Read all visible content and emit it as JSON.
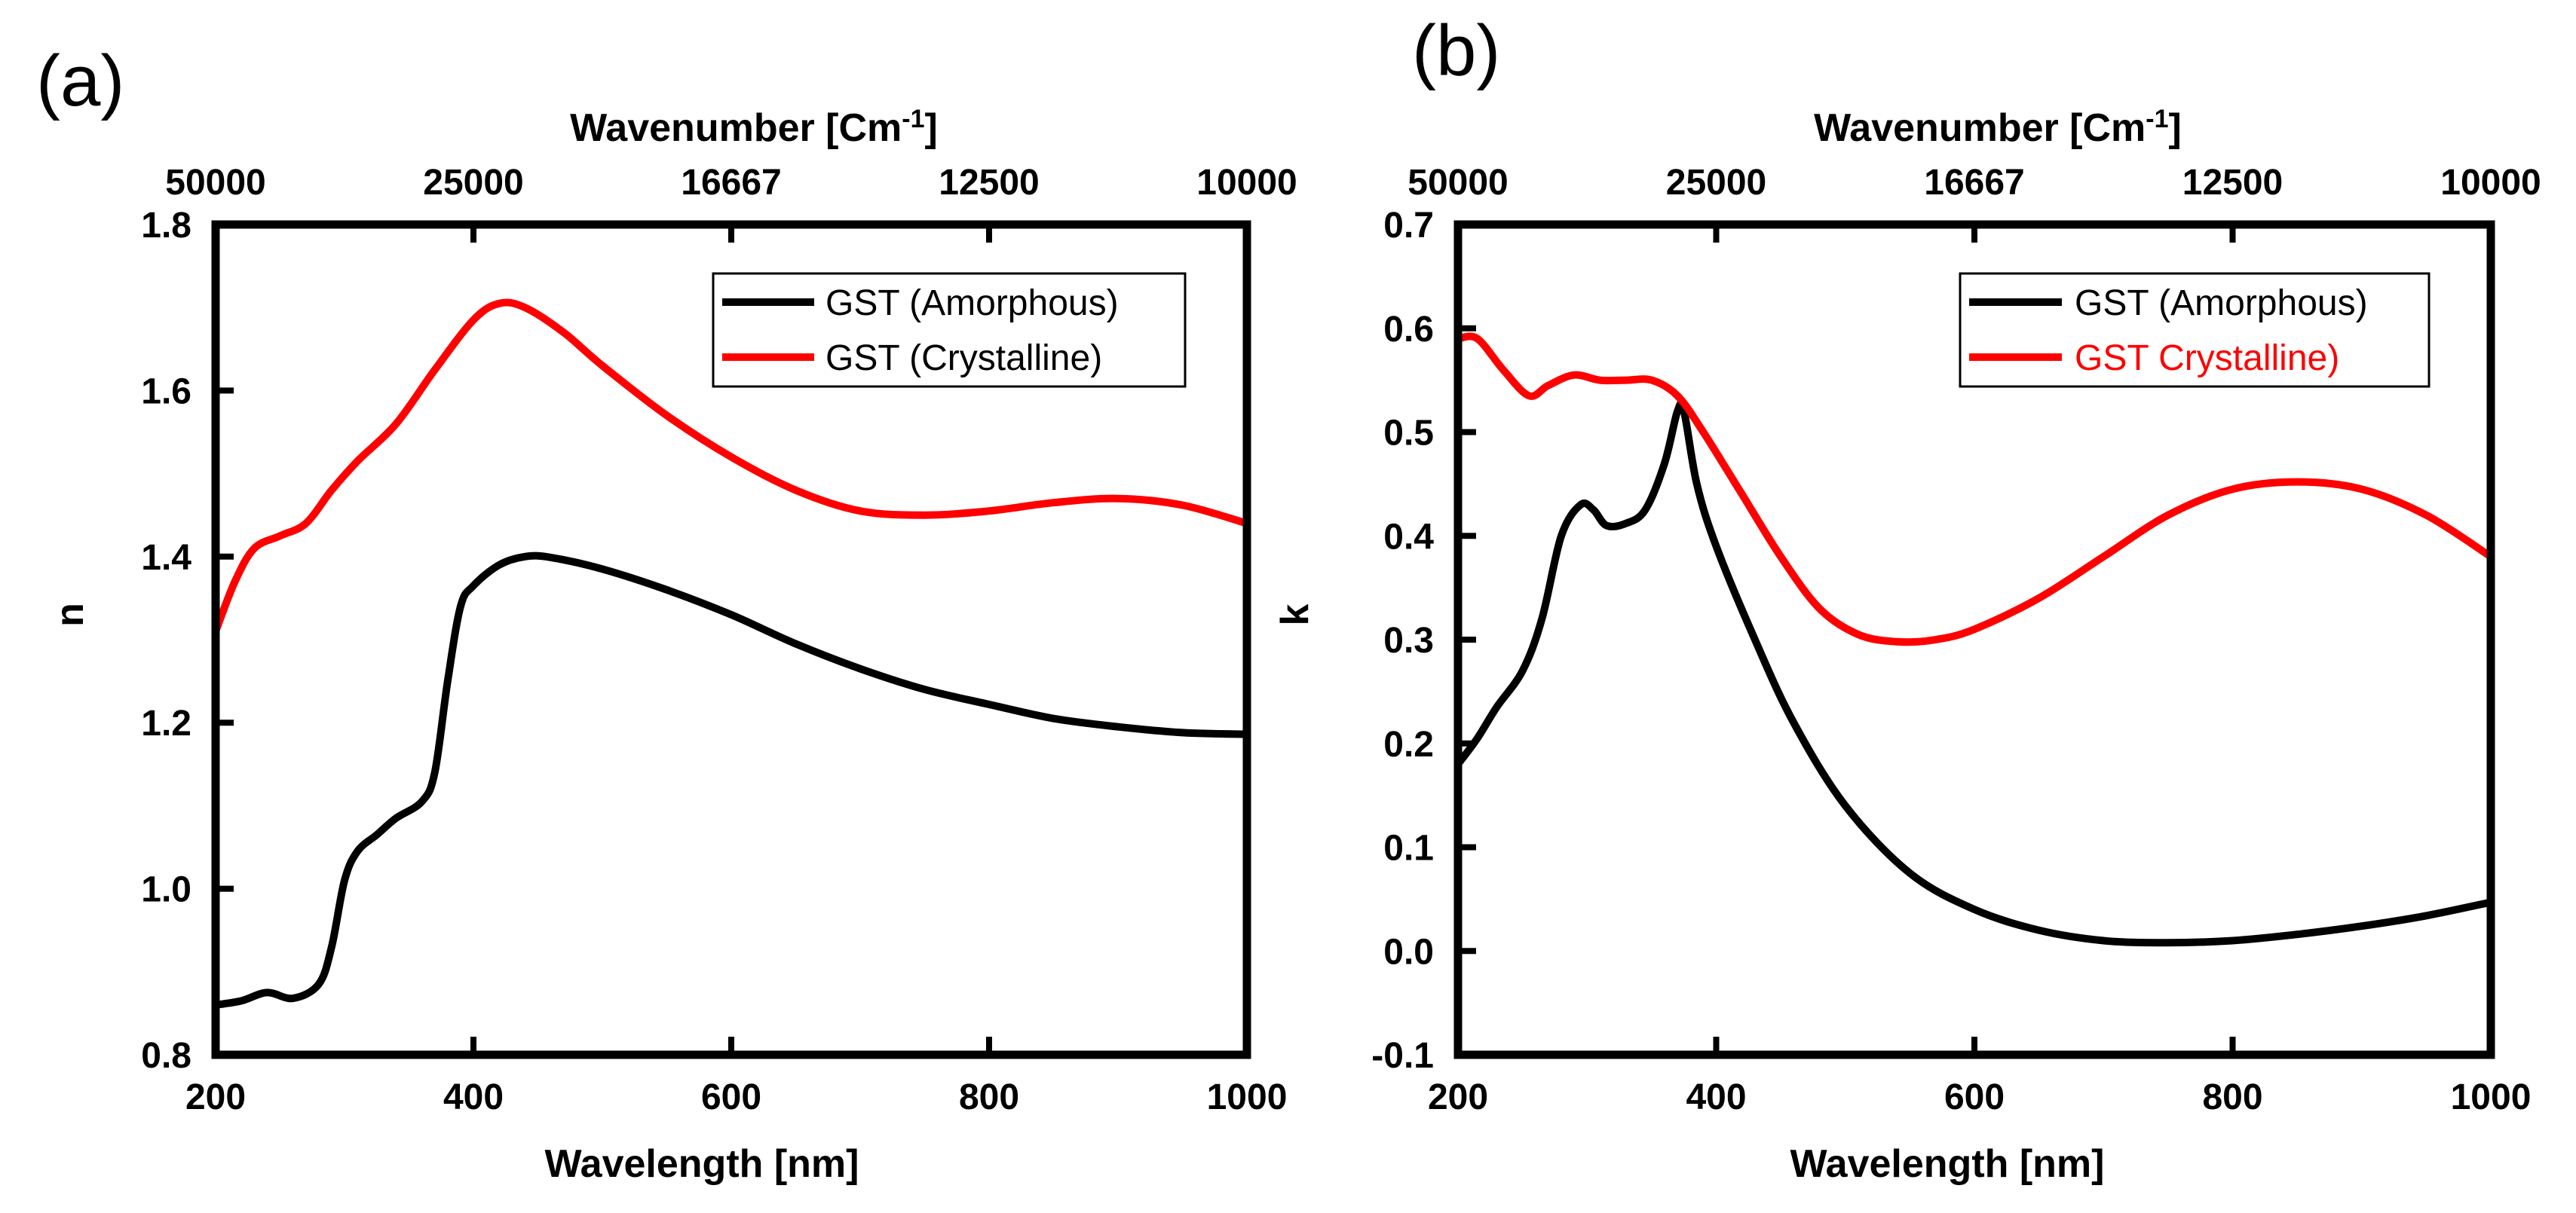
{
  "chart_data": [
    {
      "panel": "(a)",
      "type": "line",
      "xlabel": "Wavelength [nm]",
      "ylabel": "n",
      "top_xlabel": "Wavenumber [Cm",
      "top_xlabel_sup": "-1",
      "top_xlabel_end": "]",
      "xlim": [
        200,
        1000
      ],
      "ylim": [
        0.8,
        1.8
      ],
      "xticks": [
        200,
        400,
        600,
        800,
        1000
      ],
      "yticks": [
        0.8,
        1.0,
        1.2,
        1.4,
        1.6,
        1.8
      ],
      "ytick_labels": [
        "0.8",
        "1.0",
        "1.2",
        "1.4",
        "1.6",
        "1.8"
      ],
      "top_ticks": [
        {
          "wavelength": 200,
          "label": "50000"
        },
        {
          "wavelength": 400,
          "label": "25000"
        },
        {
          "wavelength": 600,
          "label": "16667"
        },
        {
          "wavelength": 800,
          "label": "12500"
        },
        {
          "wavelength": 1000,
          "label": "10000"
        }
      ],
      "legend_position": "top-right",
      "series": [
        {
          "name": "GST (Amorphous)",
          "color": "#000000",
          "label_color": "#000000",
          "points": [
            [
              200,
              0.86
            ],
            [
              220,
              0.865
            ],
            [
              240,
              0.875
            ],
            [
              260,
              0.868
            ],
            [
              280,
              0.885
            ],
            [
              290,
              0.93
            ],
            [
              300,
              1.01
            ],
            [
              310,
              1.045
            ],
            [
              325,
              1.065
            ],
            [
              340,
              1.085
            ],
            [
              360,
              1.105
            ],
            [
              370,
              1.14
            ],
            [
              380,
              1.25
            ],
            [
              390,
              1.34
            ],
            [
              400,
              1.365
            ],
            [
              420,
              1.39
            ],
            [
              440,
              1.4
            ],
            [
              460,
              1.399
            ],
            [
              500,
              1.385
            ],
            [
              550,
              1.36
            ],
            [
              600,
              1.33
            ],
            [
              650,
              1.295
            ],
            [
              700,
              1.265
            ],
            [
              750,
              1.24
            ],
            [
              800,
              1.222
            ],
            [
              850,
              1.205
            ],
            [
              900,
              1.195
            ],
            [
              950,
              1.188
            ],
            [
              1000,
              1.186
            ]
          ]
        },
        {
          "name": "GST (Crystalline)",
          "color": "#ff0000",
          "label_color": "#000000",
          "points": [
            [
              200,
              1.31
            ],
            [
              215,
              1.37
            ],
            [
              230,
              1.41
            ],
            [
              250,
              1.425
            ],
            [
              270,
              1.44
            ],
            [
              290,
              1.48
            ],
            [
              310,
              1.515
            ],
            [
              340,
              1.56
            ],
            [
              370,
              1.625
            ],
            [
              400,
              1.685
            ],
            [
              420,
              1.705
            ],
            [
              440,
              1.7
            ],
            [
              470,
              1.67
            ],
            [
              500,
              1.63
            ],
            [
              550,
              1.57
            ],
            [
              600,
              1.52
            ],
            [
              650,
              1.48
            ],
            [
              700,
              1.455
            ],
            [
              750,
              1.45
            ],
            [
              800,
              1.455
            ],
            [
              850,
              1.465
            ],
            [
              900,
              1.47
            ],
            [
              950,
              1.462
            ],
            [
              1000,
              1.44
            ]
          ]
        }
      ]
    },
    {
      "panel": "(b)",
      "type": "line",
      "xlabel": "Wavelength [nm]",
      "ylabel": "k",
      "top_xlabel": "Wavenumber [Cm",
      "top_xlabel_sup": "-1",
      "top_xlabel_end": "]",
      "xlim": [
        200,
        1000
      ],
      "ylim": [
        -0.1,
        0.7
      ],
      "xticks": [
        200,
        400,
        600,
        800,
        1000
      ],
      "yticks": [
        -0.1,
        0.0,
        0.1,
        0.2,
        0.3,
        0.4,
        0.5,
        0.6,
        0.7
      ],
      "ytick_labels": [
        "-0.1",
        "0.0",
        "0.1",
        "0.2",
        "0.3",
        "0.4",
        "0.5",
        "0.6",
        "0.7"
      ],
      "top_ticks": [
        {
          "wavelength": 200,
          "label": "50000"
        },
        {
          "wavelength": 400,
          "label": "25000"
        },
        {
          "wavelength": 600,
          "label": "16667"
        },
        {
          "wavelength": 800,
          "label": "12500"
        },
        {
          "wavelength": 1000,
          "label": "10000"
        }
      ],
      "legend_position": "top-right",
      "series": [
        {
          "name": "GST (Amorphous)",
          "color": "#000000",
          "label_color": "#000000",
          "points": [
            [
              200,
              0.18
            ],
            [
              215,
              0.205
            ],
            [
              230,
              0.235
            ],
            [
              250,
              0.27
            ],
            [
              265,
              0.32
            ],
            [
              280,
              0.4
            ],
            [
              295,
              0.43
            ],
            [
              305,
              0.425
            ],
            [
              315,
              0.41
            ],
            [
              330,
              0.412
            ],
            [
              345,
              0.425
            ],
            [
              360,
              0.47
            ],
            [
              370,
              0.52
            ],
            [
              375,
              0.52
            ],
            [
              385,
              0.45
            ],
            [
              400,
              0.39
            ],
            [
              430,
              0.3
            ],
            [
              460,
              0.22
            ],
            [
              500,
              0.14
            ],
            [
              550,
              0.075
            ],
            [
              600,
              0.04
            ],
            [
              650,
              0.02
            ],
            [
              700,
              0.01
            ],
            [
              750,
              0.008
            ],
            [
              800,
              0.01
            ],
            [
              850,
              0.016
            ],
            [
              900,
              0.024
            ],
            [
              950,
              0.034
            ],
            [
              1000,
              0.047
            ]
          ]
        },
        {
          "name": "GST Crystalline)",
          "color": "#ff0000",
          "label_color": "#ff0000",
          "points": [
            [
              200,
              0.59
            ],
            [
              215,
              0.59
            ],
            [
              235,
              0.56
            ],
            [
              255,
              0.535
            ],
            [
              270,
              0.545
            ],
            [
              290,
              0.555
            ],
            [
              310,
              0.55
            ],
            [
              330,
              0.55
            ],
            [
              350,
              0.55
            ],
            [
              370,
              0.535
            ],
            [
              390,
              0.5
            ],
            [
              420,
              0.44
            ],
            [
              450,
              0.38
            ],
            [
              480,
              0.33
            ],
            [
              510,
              0.305
            ],
            [
              540,
              0.298
            ],
            [
              570,
              0.3
            ],
            [
              600,
              0.31
            ],
            [
              650,
              0.34
            ],
            [
              700,
              0.38
            ],
            [
              750,
              0.42
            ],
            [
              800,
              0.445
            ],
            [
              850,
              0.452
            ],
            [
              900,
              0.445
            ],
            [
              950,
              0.42
            ],
            [
              1000,
              0.38
            ]
          ]
        }
      ]
    }
  ]
}
